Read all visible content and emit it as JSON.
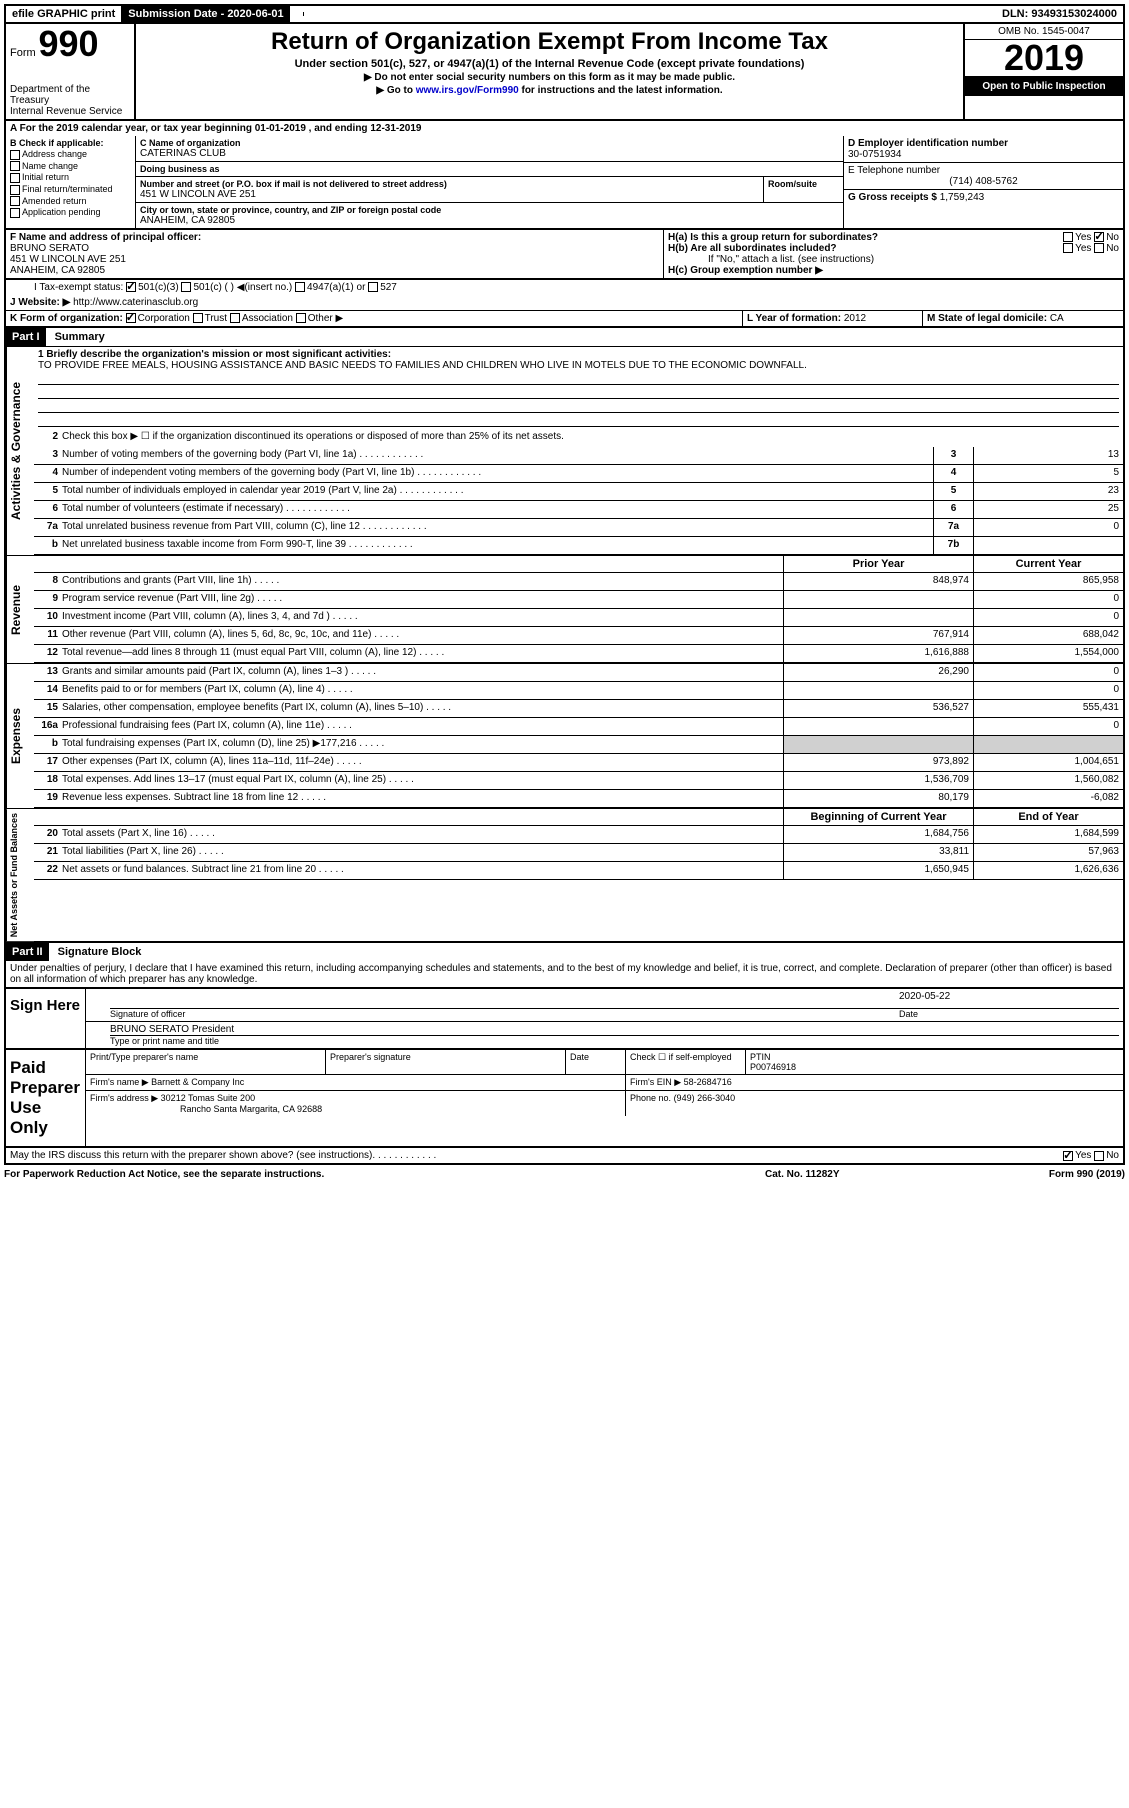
{
  "topbar": {
    "efile": "efile GRAPHIC print",
    "submission_label": "Submission Date - 2020-06-01",
    "dln": "DLN: 93493153024000"
  },
  "header": {
    "form_prefix": "Form",
    "form_number": "990",
    "agency": "Department of the Treasury\nInternal Revenue Service",
    "title": "Return of Organization Exempt From Income Tax",
    "subtitle": "Under section 501(c), 527, or 4947(a)(1) of the Internal Revenue Code (except private foundations)",
    "instr1": "▶ Do not enter social security numbers on this form as it may be made public.",
    "instr2_pre": "▶ Go to ",
    "instr2_link": "www.irs.gov/Form990",
    "instr2_post": " for instructions and the latest information.",
    "omb": "OMB No. 1545-0047",
    "year": "2019",
    "open": "Open to Public Inspection"
  },
  "a_line": "A For the 2019 calendar year, or tax year beginning 01-01-2019   , and ending 12-31-2019",
  "b_header": "B Check if applicable:",
  "b_options": {
    "address": "Address change",
    "name": "Name change",
    "initial": "Initial return",
    "final": "Final return/terminated",
    "amended": "Amended return",
    "application": "Application pending"
  },
  "c": {
    "name_label": "C Name of organization",
    "name": "CATERINAS CLUB",
    "dba_label": "Doing business as",
    "dba": "",
    "street_label": "Number and street (or P.O. box if mail is not delivered to street address)",
    "street": "451 W LINCOLN AVE 251",
    "room_label": "Room/suite",
    "city_label": "City or town, state or province, country, and ZIP or foreign postal code",
    "city": "ANAHEIM, CA  92805"
  },
  "d": {
    "label": "D Employer identification number",
    "value": "30-0751934"
  },
  "e": {
    "label": "E Telephone number",
    "value": "(714) 408-5762"
  },
  "g": {
    "label": "G Gross receipts $",
    "value": "1,759,243"
  },
  "f": {
    "label": "F  Name and address of principal officer:",
    "name": "BRUNO SERATO",
    "addr1": "451 W LINCOLN AVE 251",
    "addr2": "ANAHEIM, CA  92805"
  },
  "h": {
    "ha": "H(a)  Is this a group return for subordinates?",
    "hb": "H(b)  Are all subordinates included?",
    "hb_note": "If \"No,\" attach a list. (see instructions)",
    "hc": "H(c)  Group exemption number ▶"
  },
  "i_label": "I   Tax-exempt status:",
  "i_options": {
    "1": "501(c)(3)",
    "2": "501(c) (   ) ◀(insert no.)",
    "3": "4947(a)(1) or",
    "4": "527"
  },
  "j": {
    "label": "J   Website: ▶",
    "value": "http://www.caterinasclub.org"
  },
  "k": {
    "label": "K Form of organization:",
    "corp": "Corporation",
    "trust": "Trust",
    "assoc": "Association",
    "other": "Other ▶"
  },
  "l": {
    "label": "L Year of formation:",
    "value": "2012"
  },
  "m": {
    "label": "M State of legal domicile:",
    "value": "CA"
  },
  "parts": {
    "p1": "Part I",
    "p1_title": "Summary",
    "p2": "Part II",
    "p2_title": "Signature Block"
  },
  "vtabs": {
    "gov": "Activities & Governance",
    "rev": "Revenue",
    "exp": "Expenses",
    "net": "Net Assets or Fund Balances"
  },
  "q1": {
    "label": "1   Briefly describe the organization's mission or most significant activities:",
    "text": "TO PROVIDE FREE MEALS, HOUSING ASSISTANCE AND BASIC NEEDS TO FAMILIES AND CHILDREN WHO LIVE IN MOTELS DUE TO THE ECONOMIC DOWNFALL."
  },
  "q2": "Check this box ▶ ☐  if the organization discontinued its operations or disposed of more than 25% of its net assets.",
  "lines_gov": [
    {
      "n": "3",
      "d": "Number of voting members of the governing body (Part VI, line 1a)",
      "b": "3",
      "v": "13"
    },
    {
      "n": "4",
      "d": "Number of independent voting members of the governing body (Part VI, line 1b)",
      "b": "4",
      "v": "5"
    },
    {
      "n": "5",
      "d": "Total number of individuals employed in calendar year 2019 (Part V, line 2a)",
      "b": "5",
      "v": "23"
    },
    {
      "n": "6",
      "d": "Total number of volunteers (estimate if necessary)",
      "b": "6",
      "v": "25"
    },
    {
      "n": "7a",
      "d": "Total unrelated business revenue from Part VIII, column (C), line 12",
      "b": "7a",
      "v": "0"
    },
    {
      "n": "b",
      "d": "Net unrelated business taxable income from Form 990-T, line 39",
      "b": "7b",
      "v": ""
    }
  ],
  "col_headers": {
    "prior": "Prior Year",
    "current": "Current Year",
    "begin": "Beginning of Current Year",
    "end": "End of Year"
  },
  "lines_rev": [
    {
      "n": "8",
      "d": "Contributions and grants (Part VIII, line 1h)",
      "p": "848,974",
      "c": "865,958"
    },
    {
      "n": "9",
      "d": "Program service revenue (Part VIII, line 2g)",
      "p": "",
      "c": "0"
    },
    {
      "n": "10",
      "d": "Investment income (Part VIII, column (A), lines 3, 4, and 7d )",
      "p": "",
      "c": "0"
    },
    {
      "n": "11",
      "d": "Other revenue (Part VIII, column (A), lines 5, 6d, 8c, 9c, 10c, and 11e)",
      "p": "767,914",
      "c": "688,042"
    },
    {
      "n": "12",
      "d": "Total revenue—add lines 8 through 11 (must equal Part VIII, column (A), line 12)",
      "p": "1,616,888",
      "c": "1,554,000"
    }
  ],
  "lines_exp": [
    {
      "n": "13",
      "d": "Grants and similar amounts paid (Part IX, column (A), lines 1–3 )",
      "p": "26,290",
      "c": "0"
    },
    {
      "n": "14",
      "d": "Benefits paid to or for members (Part IX, column (A), line 4)",
      "p": "",
      "c": "0"
    },
    {
      "n": "15",
      "d": "Salaries, other compensation, employee benefits (Part IX, column (A), lines 5–10)",
      "p": "536,527",
      "c": "555,431"
    },
    {
      "n": "16a",
      "d": "Professional fundraising fees (Part IX, column (A), line 11e)",
      "p": "",
      "c": "0"
    },
    {
      "n": "b",
      "d": "Total fundraising expenses (Part IX, column (D), line 25) ▶177,216",
      "p": "shade",
      "c": "shade"
    },
    {
      "n": "17",
      "d": "Other expenses (Part IX, column (A), lines 11a–11d, 11f–24e)",
      "p": "973,892",
      "c": "1,004,651"
    },
    {
      "n": "18",
      "d": "Total expenses. Add lines 13–17 (must equal Part IX, column (A), line 25)",
      "p": "1,536,709",
      "c": "1,560,082"
    },
    {
      "n": "19",
      "d": "Revenue less expenses. Subtract line 18 from line 12",
      "p": "80,179",
      "c": "-6,082"
    }
  ],
  "lines_net": [
    {
      "n": "20",
      "d": "Total assets (Part X, line 16)",
      "p": "1,684,756",
      "c": "1,684,599"
    },
    {
      "n": "21",
      "d": "Total liabilities (Part X, line 26)",
      "p": "33,811",
      "c": "57,963"
    },
    {
      "n": "22",
      "d": "Net assets or fund balances. Subtract line 21 from line 20",
      "p": "1,650,945",
      "c": "1,626,636"
    }
  ],
  "decl": "Under penalties of perjury, I declare that I have examined this return, including accompanying schedules and statements, and to the best of my knowledge and belief, it is true, correct, and complete. Declaration of preparer (other than officer) is based on all information of which preparer has any knowledge.",
  "sign": {
    "here": "Sign Here",
    "sig_label": "Signature of officer",
    "date_label": "Date",
    "date": "2020-05-22",
    "officer": "BRUNO SERATO President",
    "officer_label": "Type or print name and title"
  },
  "prep": {
    "title": "Paid Preparer Use Only",
    "name_label": "Print/Type preparer's name",
    "sig_label": "Preparer's signature",
    "date_label": "Date",
    "check_label": "Check ☐ if self-employed",
    "ptin_label": "PTIN",
    "ptin": "P00746918",
    "firm_name_label": "Firm's name   ▶",
    "firm_name": "Barnett & Company Inc",
    "firm_ein_label": "Firm's EIN ▶",
    "firm_ein": "58-2684716",
    "firm_addr_label": "Firm's address ▶",
    "firm_addr1": "30212 Tomas Suite 200",
    "firm_addr2": "Rancho Santa Margarita, CA  92688",
    "phone_label": "Phone no.",
    "phone": "(949) 266-3040"
  },
  "discuss": "May the IRS discuss this return with the preparer shown above? (see instructions)",
  "footer": {
    "left": "For Paperwork Reduction Act Notice, see the separate instructions.",
    "mid": "Cat. No. 11282Y",
    "right": "Form 990 (2019)"
  }
}
